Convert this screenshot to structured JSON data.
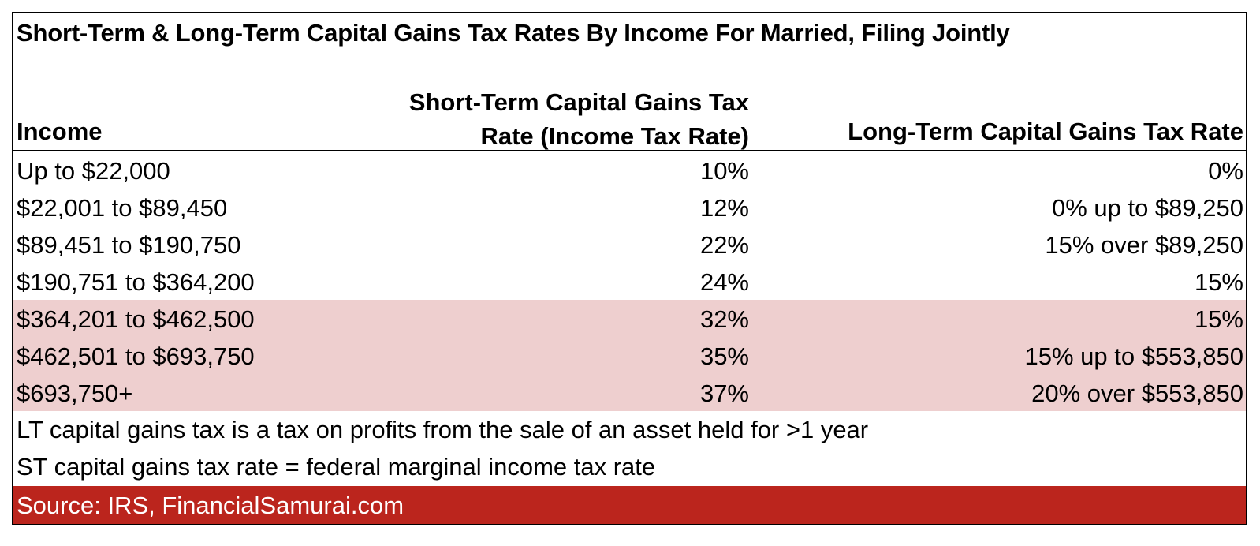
{
  "title": "Short-Term & Long-Term Capital Gains Tax Rates By Income For Married, Filing Jointly",
  "headers": {
    "income": "Income",
    "st_line1": "Short-Term Capital Gains Tax",
    "st_line2": "Rate (Income Tax Rate)",
    "lt": "Long-Term Capital Gains Tax Rate"
  },
  "rows": [
    {
      "income": "Up to $22,000",
      "st": "10%",
      "lt": "0%"
    },
    {
      "income": "$22,001 to $89,450",
      "st": "12%",
      "lt": "0% up to $89,250"
    },
    {
      "income": "$89,451 to $190,750",
      "st": "22%",
      "lt": "15% over $89,250"
    },
    {
      "income": "$190,751 to $364,200",
      "st": "24%",
      "lt": "15%"
    },
    {
      "income": "$364,201 to $462,500",
      "st": "32%",
      "lt": "15%"
    },
    {
      "income": "$462,501 to $693,750",
      "st": "35%",
      "lt": "15% up to $553,850"
    },
    {
      "income": "$693,750+",
      "st": "37%",
      "lt": "20% over $553,850"
    }
  ],
  "notes": [
    "LT capital gains tax is a tax on profits from the sale of an asset held for >1 year",
    "ST capital gains tax rate = federal marginal income tax rate"
  ],
  "source": "Source: IRS, FinancialSamurai.com",
  "colors": {
    "highlight_row": "#eecfcf",
    "source_bar": "#bb251d",
    "source_text": "#ffffff"
  }
}
